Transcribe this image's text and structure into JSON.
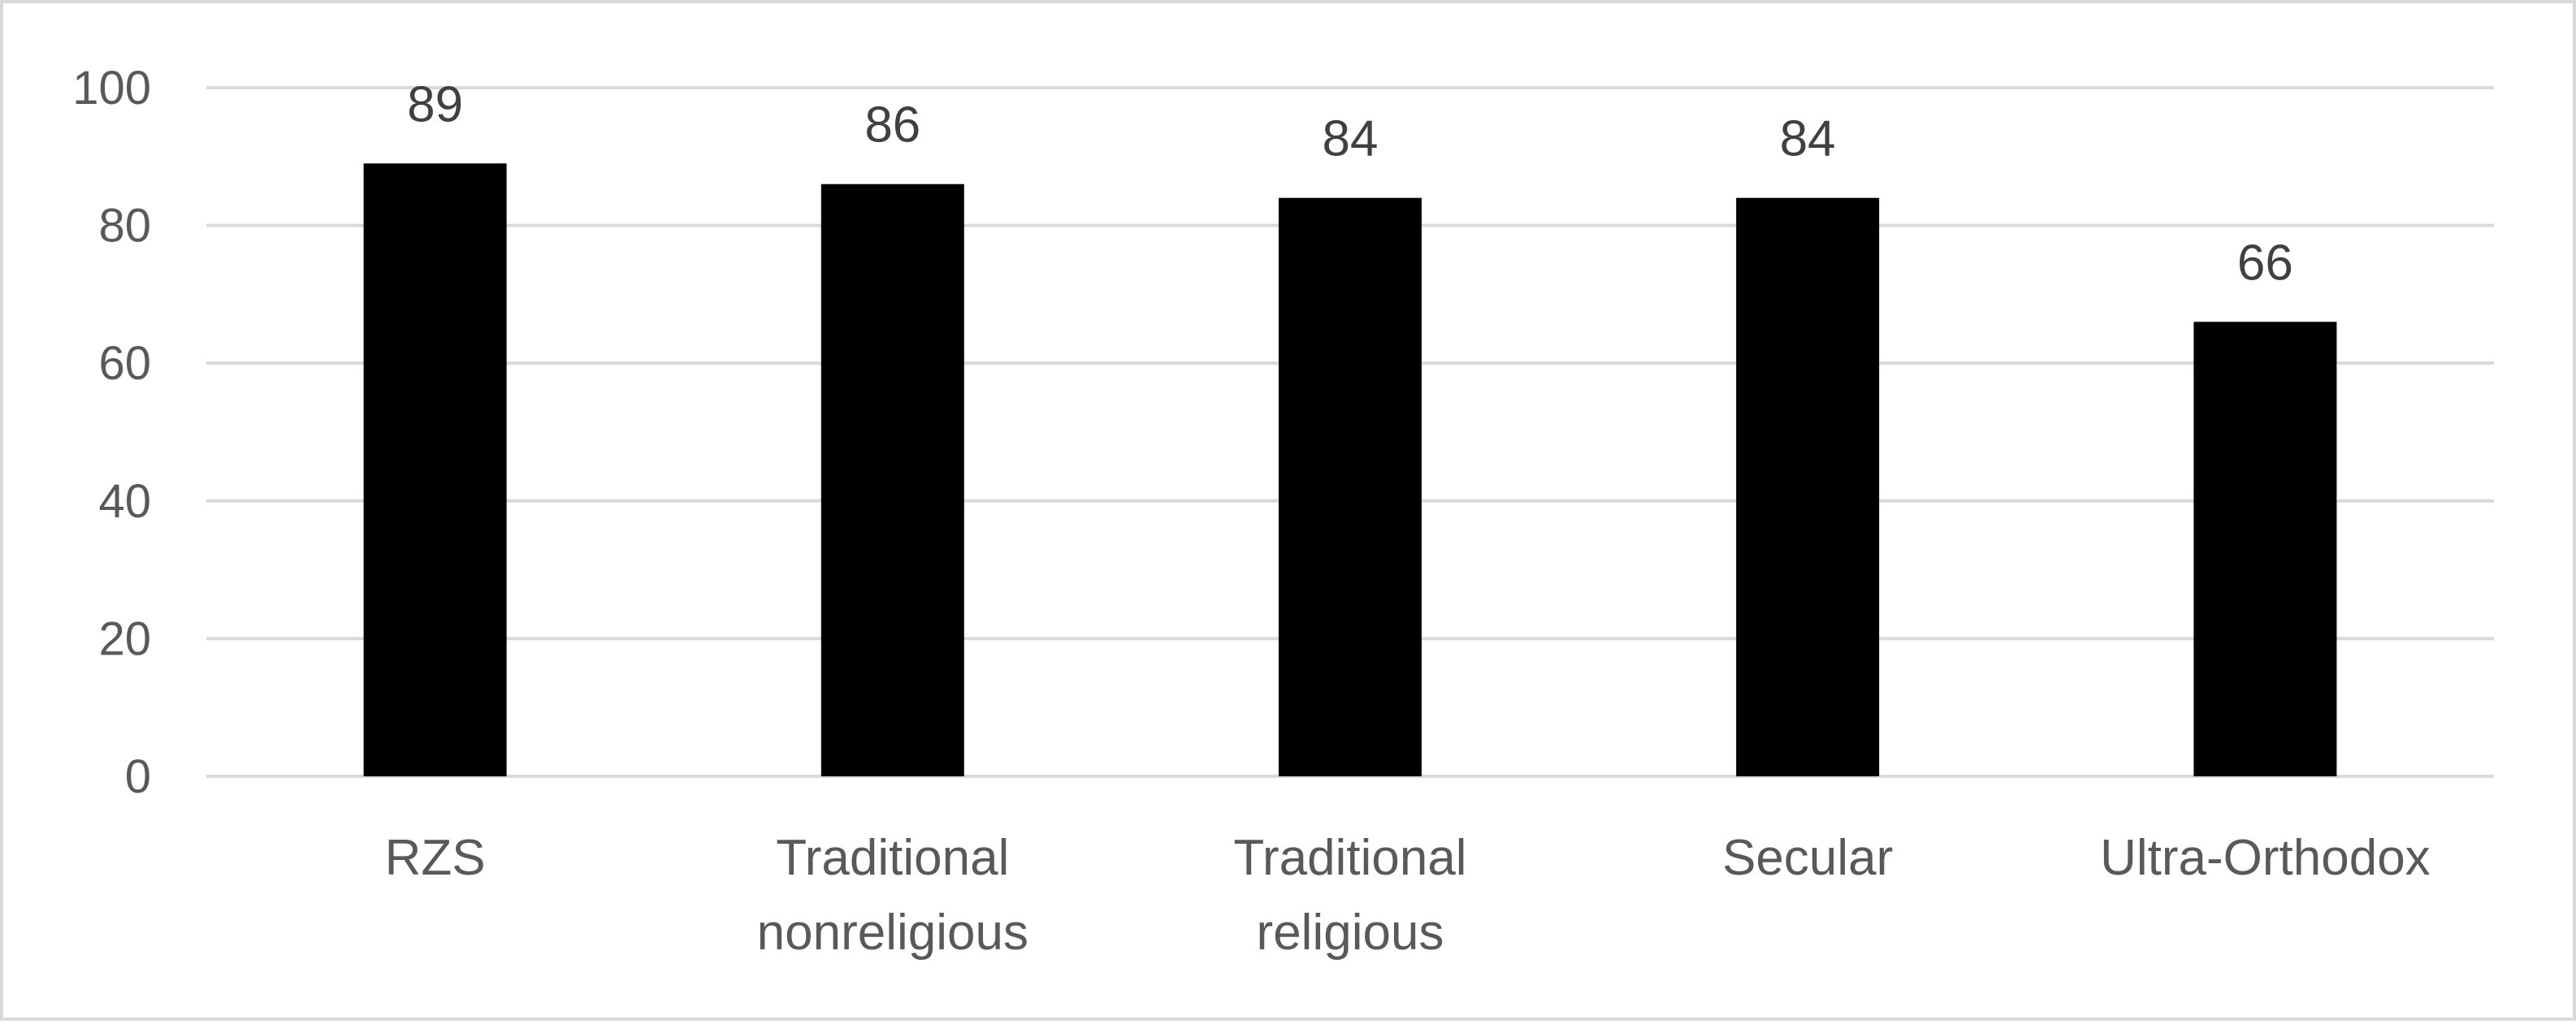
{
  "chart_data": {
    "type": "bar",
    "title": "",
    "xlabel": "",
    "ylabel": "",
    "categories": [
      "RZS",
      "Traditional nonreligious",
      "Traditional religious",
      "Secular",
      "Ultra-Orthodox"
    ],
    "category_lines": [
      [
        "RZS"
      ],
      [
        "Traditional",
        "nonreligious"
      ],
      [
        "Traditional",
        "religious"
      ],
      [
        "Secular"
      ],
      [
        "Ultra-Orthodox"
      ]
    ],
    "values": [
      89,
      86,
      84,
      84,
      66
    ],
    "data_labels": [
      "89",
      "86",
      "84",
      "84",
      "66"
    ],
    "ylim": [
      0,
      100
    ],
    "yticks": [
      0,
      20,
      40,
      60,
      80,
      100
    ],
    "ytick_labels": [
      "0",
      "20",
      "40",
      "60",
      "80",
      "100"
    ],
    "grid": true,
    "legend": "none",
    "colors": {
      "bar": "#000000",
      "grid": "#d9d9d9",
      "frame": "#d9d9d9"
    }
  }
}
